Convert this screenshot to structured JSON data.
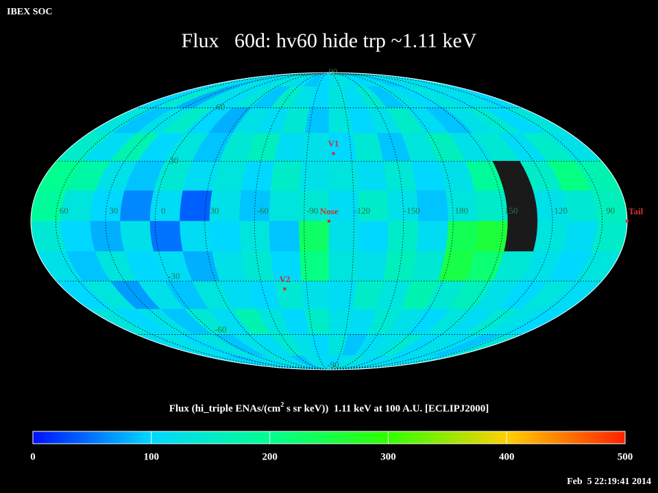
{
  "chart_data": {
    "type": "skymap",
    "projection": "mollweide",
    "center_lon": -105,
    "header": "IBEX SOC",
    "title": "Flux   60d: hv60 hide trp ~1.11 keV",
    "colorbar_label": {
      "pre": "Flux (hi_triple ENAs/(cm",
      "sup": "2",
      "post": " s sr keV))  1.11 keV at 100 A.U. [ECLIPJ2000]"
    },
    "timestamp": "Feb  5 22:19:41 2014",
    "clim": [
      0,
      500
    ],
    "cticks": [
      0,
      100,
      200,
      300,
      400,
      500
    ],
    "colormap": [
      "#0010ff",
      "#00d8ff",
      "#00ff90",
      "#30ff00",
      "#ffd000",
      "#ff2000"
    ],
    "missing_color": "#1a1a1a",
    "lon_edges": [
      75,
      57,
      39,
      21,
      3,
      -15,
      -33,
      -51,
      -69,
      -87,
      -105,
      -123,
      -141,
      -159,
      -177,
      165,
      147,
      129,
      111,
      93,
      75
    ],
    "lat_edges": [
      90,
      75,
      60,
      45,
      30,
      15,
      0,
      -15,
      -30,
      -45,
      -60,
      -75,
      -90
    ],
    "values": [
      [
        110,
        120,
        90,
        130,
        100,
        140,
        120,
        110,
        90,
        100,
        120,
        130,
        110,
        100,
        120,
        90,
        110,
        130,
        100,
        120
      ],
      [
        100,
        140,
        80,
        120,
        110,
        130,
        90,
        150,
        120,
        100,
        130,
        110,
        140,
        90,
        120,
        100,
        130,
        110,
        120,
        100
      ],
      [
        130,
        90,
        120,
        150,
        100,
        80,
        120,
        110,
        140,
        90,
        130,
        100,
        120,
        150,
        110,
        90,
        120,
        140,
        100,
        130
      ],
      [
        150,
        110,
        170,
        100,
        130,
        90,
        140,
        160,
        110,
        120,
        100,
        140,
        90,
        130,
        160,
        120,
        140,
        110,
        150,
        120
      ],
      [
        200,
        180,
        120,
        90,
        140,
        110,
        130,
        100,
        150,
        120,
        130,
        110,
        140,
        100,
        120,
        190,
        null,
        150,
        210,
        170
      ],
      [
        190,
        130,
        100,
        60,
        110,
        40,
        120,
        90,
        130,
        140,
        110,
        150,
        120,
        90,
        130,
        150,
        null,
        120,
        140,
        160
      ],
      [
        140,
        100,
        80,
        120,
        50,
        110,
        100,
        130,
        90,
        230,
        120,
        100,
        150,
        110,
        240,
        260,
        null,
        130,
        110,
        150
      ],
      [
        120,
        90,
        130,
        100,
        110,
        80,
        120,
        140,
        100,
        210,
        130,
        120,
        160,
        140,
        250,
        220,
        140,
        120,
        100,
        130
      ],
      [
        100,
        130,
        70,
        120,
        90,
        130,
        110,
        100,
        140,
        120,
        110,
        150,
        130,
        170,
        140,
        160,
        120,
        100,
        130,
        110
      ],
      [
        130,
        100,
        120,
        90,
        140,
        110,
        170,
        130,
        100,
        150,
        120,
        110,
        140,
        120,
        100,
        130,
        110,
        140,
        120,
        100
      ],
      [
        110,
        120,
        100,
        130,
        90,
        120,
        110,
        140,
        120,
        100,
        130,
        90,
        110,
        120,
        140,
        100,
        120,
        110,
        90,
        130
      ],
      [
        100,
        110,
        90,
        120,
        100,
        130,
        110,
        90,
        120,
        110,
        100,
        120,
        130,
        110,
        100,
        120,
        110,
        100,
        120,
        110
      ]
    ],
    "lon_ticks": [
      60,
      30,
      0,
      -30,
      -60,
      -90,
      -120,
      -150,
      180,
      150,
      120,
      90
    ],
    "lat_ticks": [
      90,
      60,
      30,
      -30,
      -60,
      -90
    ],
    "grid": true,
    "markers": [
      {
        "label": "V1",
        "lon": -108,
        "lat": 34
      },
      {
        "label": "Nose",
        "lon": -105,
        "lat": 0
      },
      {
        "label": "V2",
        "lon": -75,
        "lat": -34
      },
      {
        "label": "Tail",
        "lon": 75,
        "lat": 0
      }
    ],
    "marker_color": "#d03030",
    "grid_label_color": "#1f7a50"
  }
}
